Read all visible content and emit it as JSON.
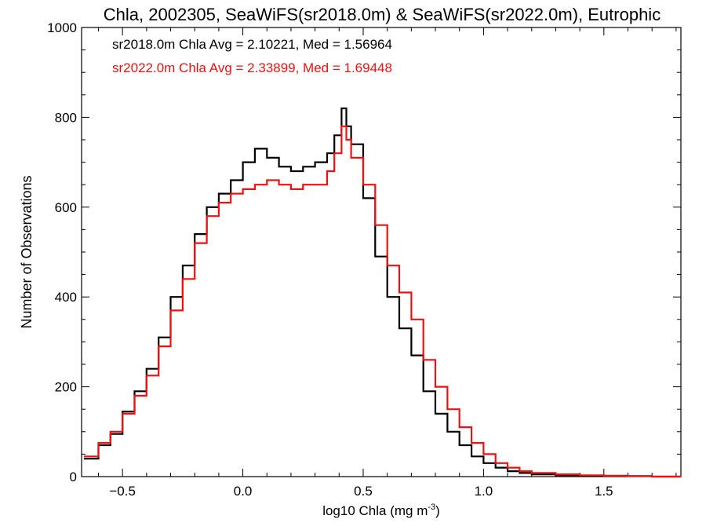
{
  "chart_data": {
    "type": "line",
    "title": "Chla, 2002305, SeaWiFS(sr2018.0m) & SeaWiFS(sr2022.0m), Eutrophic",
    "xlabel": "log10 Chla (mg m",
    "xlabel_superscript": "-3",
    "xlabel_suffix": ")",
    "ylabel": "Number of Observations",
    "xlim": [
      -0.67,
      1.82
    ],
    "ylim": [
      0,
      1000
    ],
    "x_ticks": [
      -0.5,
      0.0,
      0.5,
      1.0,
      1.5
    ],
    "x_tick_labels": [
      "−0.5",
      "0.0",
      "0.5",
      "1.0",
      "1.5"
    ],
    "y_ticks": [
      0,
      200,
      400,
      600,
      800,
      1000
    ],
    "y_tick_labels": [
      "0",
      "200",
      "400",
      "600",
      "800",
      "1000"
    ],
    "grid": false,
    "style": "step",
    "annotations": [
      "sr2018.0m Chla Avg = 2.10221, Med = 1.56964",
      "sr2022.0m Chla Avg = 2.33899, Med = 1.69448"
    ],
    "series": [
      {
        "color": "#000000",
        "x": [
          -0.66,
          -0.6,
          -0.55,
          -0.5,
          -0.45,
          -0.4,
          -0.35,
          -0.3,
          -0.25,
          -0.2,
          -0.15,
          -0.1,
          -0.05,
          0.0,
          0.05,
          0.1,
          0.15,
          0.2,
          0.25,
          0.3,
          0.35,
          0.38,
          0.41,
          0.43,
          0.45,
          0.5,
          0.55,
          0.6,
          0.65,
          0.7,
          0.75,
          0.8,
          0.85,
          0.9,
          0.95,
          1.0,
          1.05,
          1.1,
          1.15,
          1.2,
          1.3,
          1.4,
          1.5,
          1.6,
          1.7,
          1.8
        ],
        "y": [
          40,
          70,
          95,
          145,
          190,
          240,
          310,
          400,
          470,
          540,
          600,
          630,
          660,
          700,
          730,
          710,
          690,
          680,
          690,
          700,
          720,
          760,
          820,
          780,
          740,
          620,
          490,
          400,
          330,
          270,
          190,
          140,
          100,
          70,
          45,
          30,
          20,
          12,
          8,
          5,
          3,
          2,
          1,
          1,
          0,
          0
        ]
      },
      {
        "color": "#ee1111",
        "x": [
          -0.66,
          -0.6,
          -0.55,
          -0.5,
          -0.45,
          -0.4,
          -0.35,
          -0.3,
          -0.25,
          -0.2,
          -0.15,
          -0.1,
          -0.05,
          0.0,
          0.05,
          0.1,
          0.15,
          0.2,
          0.25,
          0.3,
          0.35,
          0.38,
          0.41,
          0.43,
          0.45,
          0.5,
          0.55,
          0.6,
          0.65,
          0.7,
          0.75,
          0.8,
          0.85,
          0.9,
          0.95,
          1.0,
          1.05,
          1.1,
          1.15,
          1.2,
          1.3,
          1.4,
          1.5,
          1.6,
          1.7,
          1.8
        ],
        "y": [
          45,
          75,
          100,
          140,
          180,
          225,
          290,
          370,
          440,
          520,
          580,
          610,
          630,
          640,
          650,
          660,
          650,
          640,
          650,
          650,
          680,
          720,
          780,
          750,
          710,
          650,
          560,
          470,
          410,
          350,
          260,
          200,
          150,
          110,
          75,
          50,
          30,
          20,
          12,
          8,
          5,
          3,
          2,
          1,
          0,
          0
        ]
      }
    ]
  }
}
